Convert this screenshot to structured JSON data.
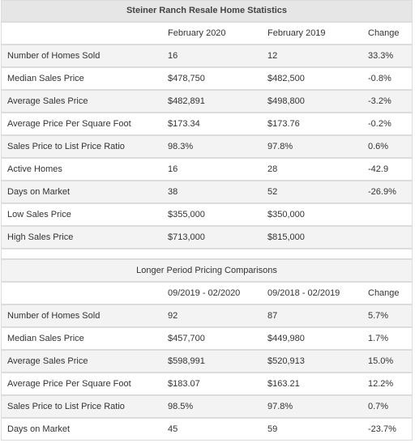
{
  "title": "Steiner Ranch Resale Home Statistics",
  "table1": {
    "columns": [
      "February 2020",
      "February 2019",
      "Change"
    ],
    "rows": [
      [
        "Number of Homes Sold",
        "16",
        "12",
        "33.3%"
      ],
      [
        "Median Sales Price",
        "$478,750",
        "$482,500",
        "-0.8%"
      ],
      [
        "Average Sales Price",
        "$482,891",
        "$498,800",
        "-3.2%"
      ],
      [
        "Average Price Per Square Foot",
        "$173.34",
        "$173.76",
        "-0.2%"
      ],
      [
        "Sales Price to List Price Ratio",
        "98.3%",
        "97.8%",
        "0.6%"
      ],
      [
        "Active Homes",
        "16",
        "28",
        "-42.9"
      ],
      [
        "Days on Market",
        "38",
        "52",
        "-26.9%"
      ],
      [
        "Low Sales Price",
        "$355,000",
        "$350,000"
      ],
      [
        "High Sales Price",
        "$713,000",
        "$815,000"
      ]
    ]
  },
  "table2": {
    "title": "Longer Period Pricing Comparisons",
    "columns": [
      "09/2019 - 02/2020",
      "09/2018 - 02/2019",
      "Change"
    ],
    "rows": [
      [
        "Number of Homes Sold",
        "92",
        "87",
        "5.7%"
      ],
      [
        "Median Sales Price",
        "$457,700",
        "$449,980",
        "1.7%"
      ],
      [
        "Average Sales Price",
        "$598,991",
        "$520,913",
        "15.0%"
      ],
      [
        "Average Price Per Square Foot",
        "$183.07",
        "$163.21",
        "12.2%"
      ],
      [
        "Sales Price to List Price Ratio",
        "98.5%",
        "97.8%",
        "0.7%"
      ],
      [
        "Days on Market",
        "45",
        "59",
        "-23.7%"
      ]
    ]
  }
}
